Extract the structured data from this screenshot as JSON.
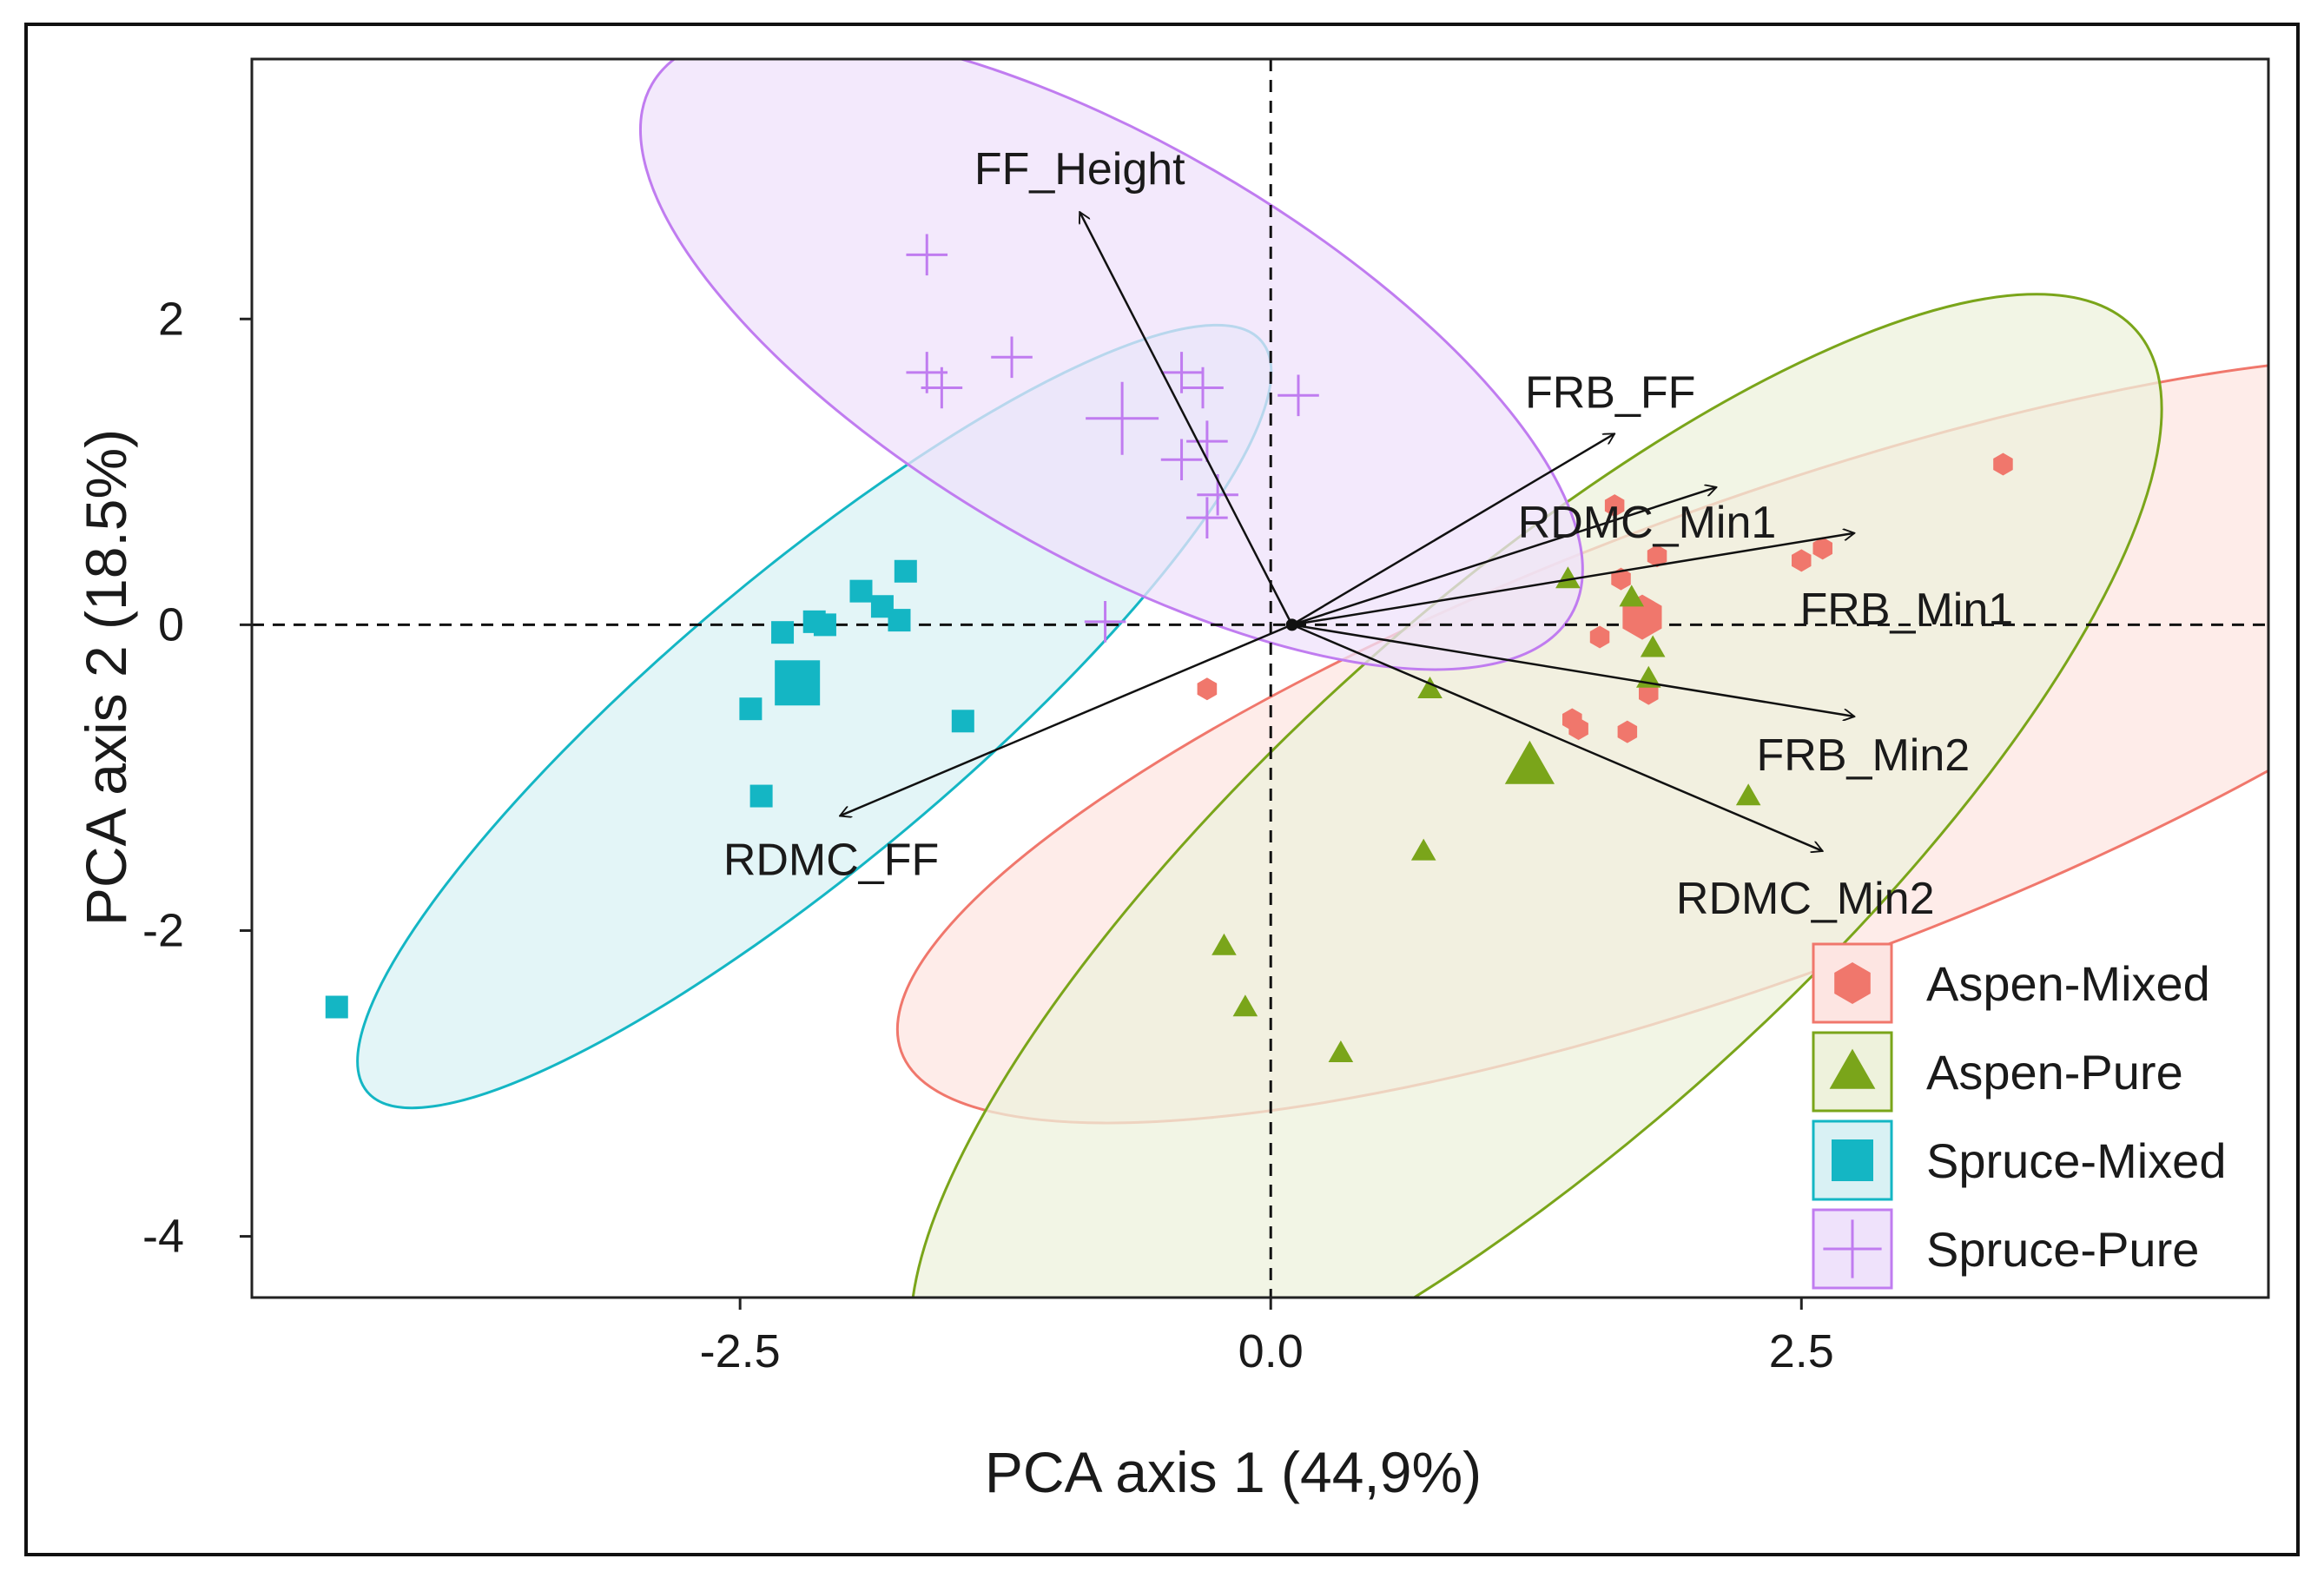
{
  "chart_data": {
    "type": "scatter",
    "subtype": "pca-biplot",
    "title": "",
    "xlabel": "PCA axis 1 (44,9%)",
    "ylabel": "PCA axis 2 (18.5%)",
    "xlim": [
      -4.8,
      4.7
    ],
    "ylim": [
      -4.4,
      3.7
    ],
    "xticks": [
      {
        "value": -2.5,
        "label": "-2.5"
      },
      {
        "value": 0.0,
        "label": "0.0"
      },
      {
        "value": 2.5,
        "label": "2.5"
      }
    ],
    "yticks": [
      {
        "value": 2,
        "label": "2"
      },
      {
        "value": 0,
        "label": "0"
      },
      {
        "value": -2,
        "label": "-2"
      },
      {
        "value": -4,
        "label": "-4"
      }
    ],
    "reference_lines": {
      "x": 0,
      "y": 0,
      "style": "dashed"
    },
    "legend": {
      "position": "bottom-right",
      "entries": [
        {
          "label": "Aspen-Mixed",
          "marker": "hexagon",
          "color": "#f0776c"
        },
        {
          "label": "Aspen-Pure",
          "marker": "triangle",
          "color": "#7aa51a"
        },
        {
          "label": "Spruce-Mixed",
          "marker": "square",
          "color": "#14b6c4"
        },
        {
          "label": "Spruce-Pure",
          "marker": "plus",
          "color": "#c07cf0"
        }
      ]
    },
    "series": [
      {
        "name": "Aspen-Mixed",
        "marker": "hexagon",
        "color": "#f0776c",
        "ellipse": {
          "cx": 2.3,
          "cy": -0.75,
          "rx": 4.3,
          "ry": 1.55,
          "angle_deg": 20
        },
        "centroid": {
          "x": 1.75,
          "y": 0.05
        },
        "points": [
          {
            "x": 3.45,
            "y": 1.05
          },
          {
            "x": 1.62,
            "y": 0.78
          },
          {
            "x": 1.65,
            "y": 0.3
          },
          {
            "x": 1.82,
            "y": 0.45
          },
          {
            "x": 2.5,
            "y": 0.42
          },
          {
            "x": 2.6,
            "y": 0.5
          },
          {
            "x": 1.55,
            "y": -0.08
          },
          {
            "x": 1.78,
            "y": -0.45
          },
          {
            "x": 1.42,
            "y": -0.62
          },
          {
            "x": 1.45,
            "y": -0.68
          },
          {
            "x": 1.68,
            "y": -0.7
          },
          {
            "x": -0.3,
            "y": -0.42
          }
        ]
      },
      {
        "name": "Aspen-Pure",
        "marker": "triangle",
        "color": "#7aa51a",
        "ellipse": {
          "cx": 1.25,
          "cy": -1.6,
          "rx": 3.8,
          "ry": 1.75,
          "angle_deg": 42
        },
        "centroid": {
          "x": 1.22,
          "y": -0.92
        },
        "points": [
          {
            "x": 1.4,
            "y": 0.3
          },
          {
            "x": 1.7,
            "y": 0.18
          },
          {
            "x": 1.8,
            "y": -0.15
          },
          {
            "x": 1.78,
            "y": -0.35
          },
          {
            "x": 0.75,
            "y": -0.42
          },
          {
            "x": 2.25,
            "y": -1.12
          },
          {
            "x": 0.72,
            "y": -1.48
          },
          {
            "x": -0.22,
            "y": -2.1
          },
          {
            "x": -0.12,
            "y": -2.5
          },
          {
            "x": 0.33,
            "y": -2.8
          }
        ]
      },
      {
        "name": "Spruce-Mixed",
        "marker": "square",
        "color": "#14b6c4",
        "ellipse": {
          "cx": -2.15,
          "cy": -0.6,
          "rx": 2.75,
          "ry": 0.95,
          "angle_deg": 40
        },
        "centroid": {
          "x": -2.23,
          "y": -0.38
        },
        "points": [
          {
            "x": -1.72,
            "y": 0.35
          },
          {
            "x": -1.93,
            "y": 0.22
          },
          {
            "x": -1.83,
            "y": 0.12
          },
          {
            "x": -1.75,
            "y": 0.03
          },
          {
            "x": -2.15,
            "y": 0.02
          },
          {
            "x": -2.3,
            "y": -0.05
          },
          {
            "x": -2.1,
            "y": 0.0
          },
          {
            "x": -2.45,
            "y": -0.55
          },
          {
            "x": -1.45,
            "y": -0.63
          },
          {
            "x": -2.4,
            "y": -1.12
          },
          {
            "x": -4.4,
            "y": -2.5
          }
        ]
      },
      {
        "name": "Spruce-Pure",
        "marker": "plus",
        "color": "#c07cf0",
        "ellipse": {
          "cx": -0.75,
          "cy": 1.8,
          "rx": 2.5,
          "ry": 1.35,
          "angle_deg": -30
        },
        "centroid": {
          "x": -0.7,
          "y": 1.35
        },
        "points": [
          {
            "x": -1.62,
            "y": 2.42
          },
          {
            "x": -1.62,
            "y": 1.65
          },
          {
            "x": -1.55,
            "y": 1.55
          },
          {
            "x": -1.22,
            "y": 1.75
          },
          {
            "x": -0.42,
            "y": 1.65
          },
          {
            "x": -0.32,
            "y": 1.55
          },
          {
            "x": 0.13,
            "y": 1.5
          },
          {
            "x": -0.3,
            "y": 1.2
          },
          {
            "x": -0.42,
            "y": 1.08
          },
          {
            "x": -0.25,
            "y": 0.85
          },
          {
            "x": -0.3,
            "y": 0.7
          },
          {
            "x": -0.78,
            "y": 0.02
          }
        ]
      }
    ],
    "vectors": [
      {
        "name": "FF_Height",
        "x": -0.9,
        "y": 2.7
      },
      {
        "name": "FRB_FF",
        "x": 1.62,
        "y": 1.25
      },
      {
        "name": "RDMC_Min1",
        "x": 2.1,
        "y": 0.9
      },
      {
        "name": "FRB_Min1",
        "x": 2.75,
        "y": 0.6
      },
      {
        "name": "FRB_Min2",
        "x": 2.75,
        "y": -0.6
      },
      {
        "name": "RDMC_Min2",
        "x": 2.6,
        "y": -1.48
      },
      {
        "name": "RDMC_FF",
        "x": -2.03,
        "y": -1.25
      }
    ]
  }
}
